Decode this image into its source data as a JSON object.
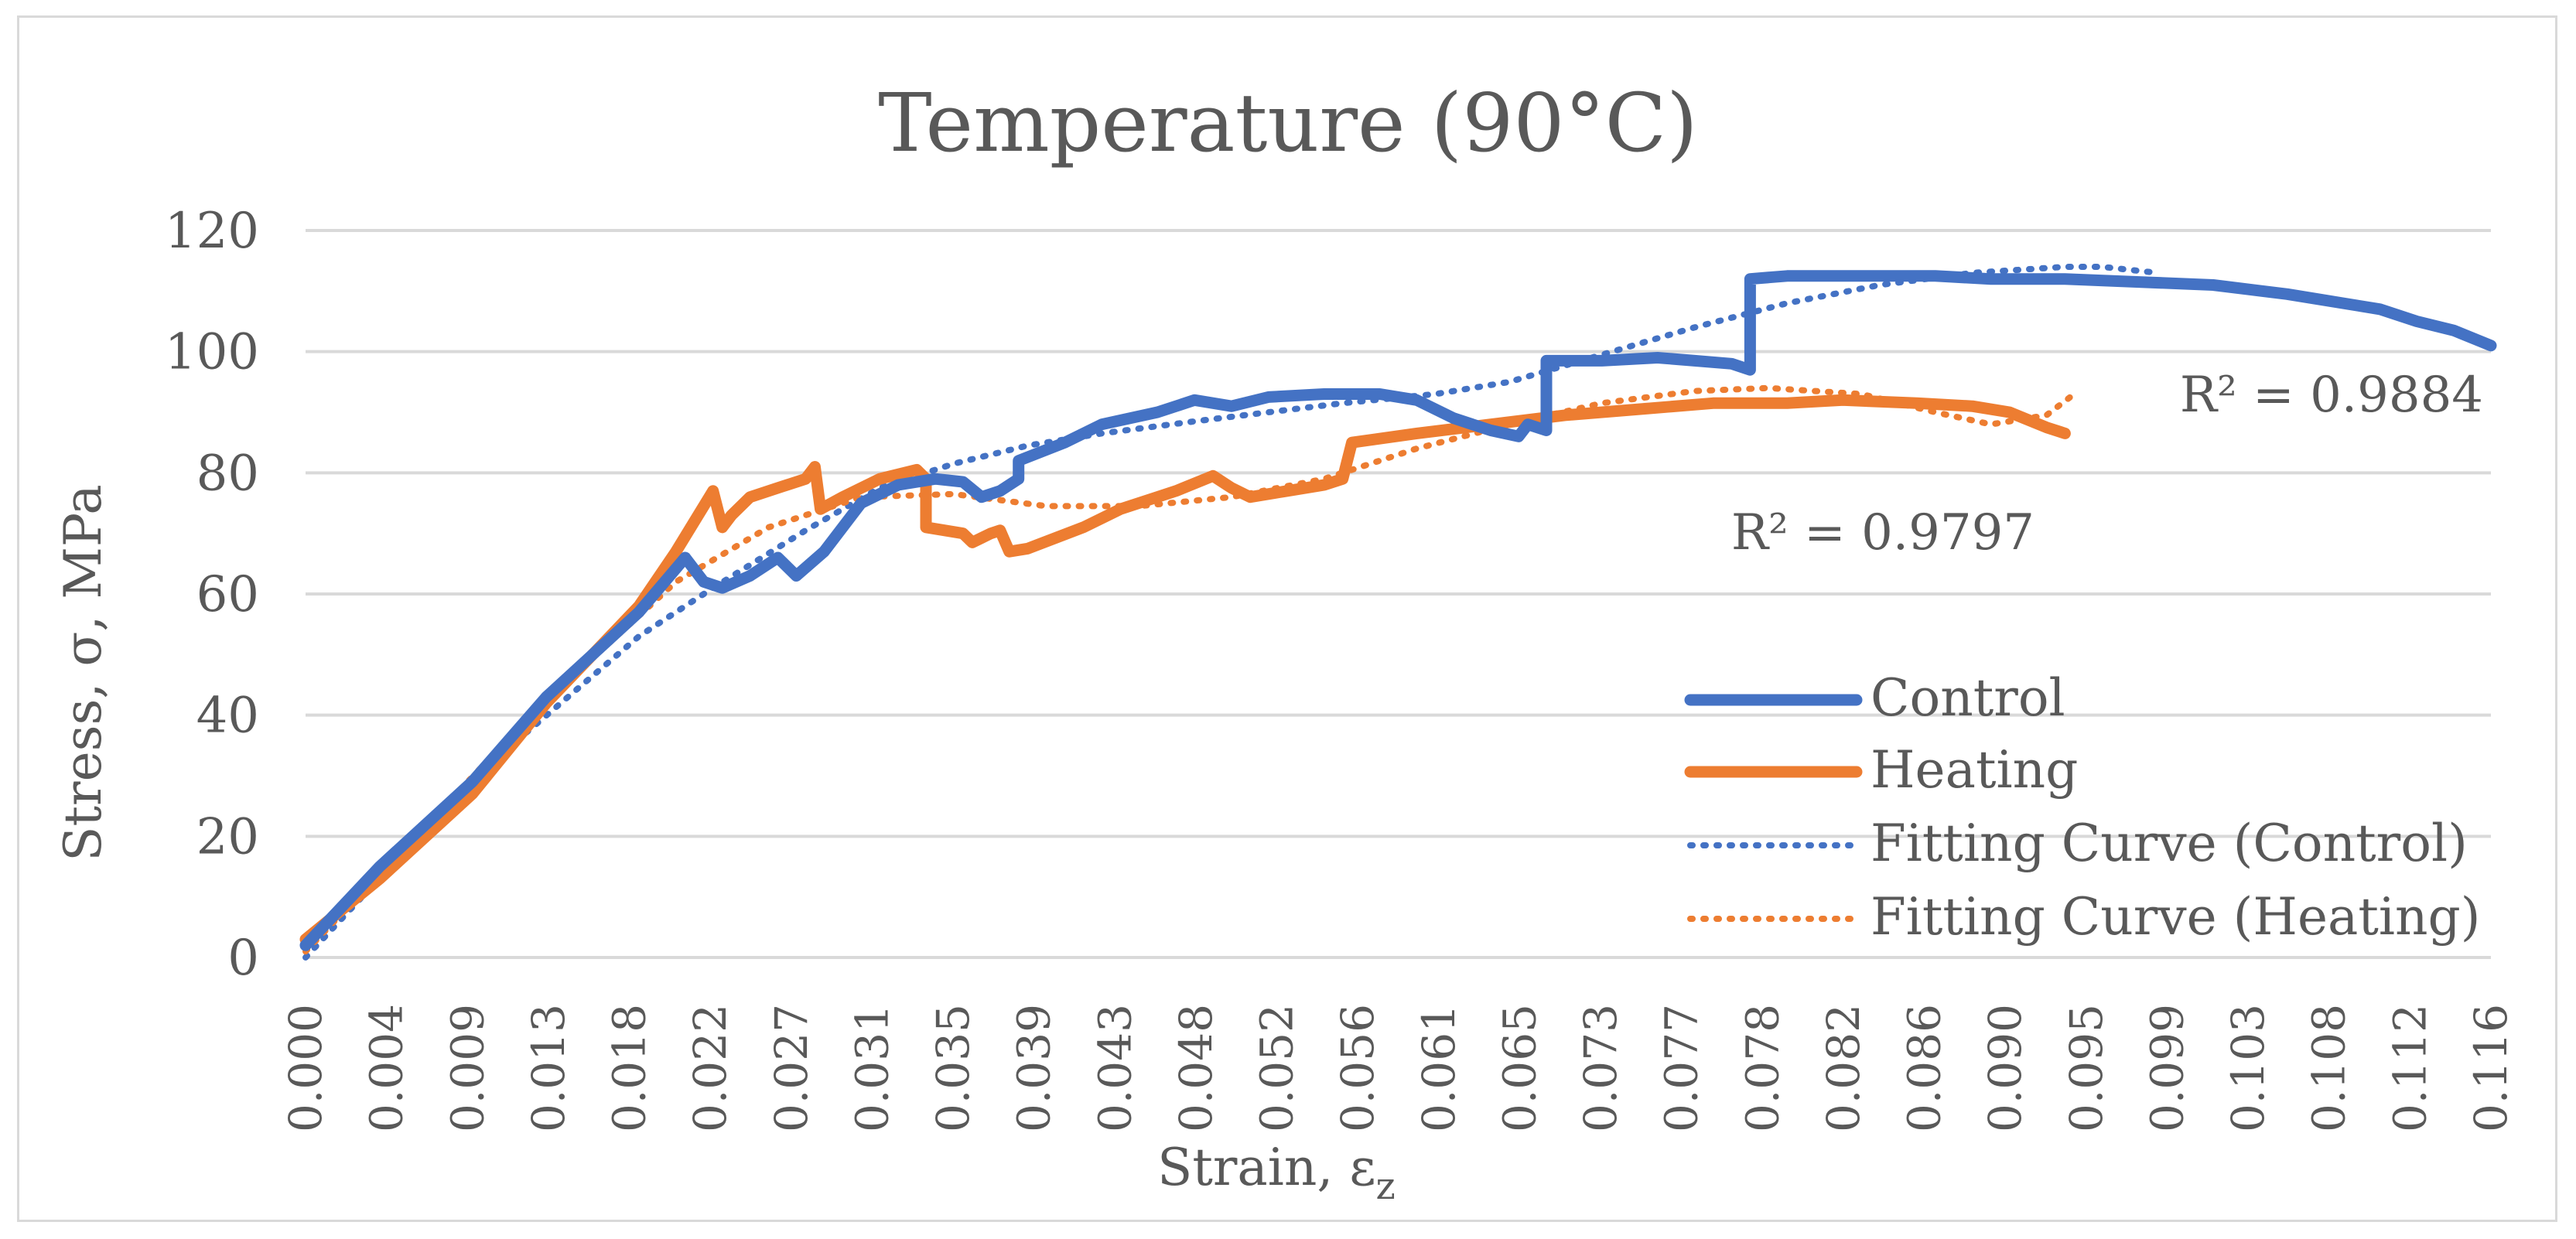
{
  "chart_data": {
    "type": "line",
    "title": "Temperature (90°C)",
    "xlabel_main": "Strain, ε",
    "xlabel_sub": "z",
    "ylabel": "Stress, σ, MPa",
    "xlim": [
      0,
      0.118
    ],
    "ylim": [
      0,
      120
    ],
    "y_ticks": [
      0,
      20,
      40,
      60,
      80,
      100,
      120
    ],
    "x_tick_labels": [
      "0.000",
      "0.004",
      "0.009",
      "0.013",
      "0.018",
      "0.022",
      "0.027",
      "0.031",
      "0.035",
      "0.039",
      "0.043",
      "0.048",
      "0.052",
      "0.056",
      "0.061",
      "0.065",
      "0.073",
      "0.077",
      "0.078",
      "0.082",
      "0.086",
      "0.090",
      "0.095",
      "0.099",
      "0.103",
      "0.108",
      "0.112",
      "0.116"
    ],
    "grid": true,
    "legend_position": "bottom-right",
    "annotations": [
      {
        "text": "R² = 0.9884",
        "series": "Fitting Curve (Control)"
      },
      {
        "text": "R² = 0.9797",
        "series": "Fitting Curve (Heating)"
      }
    ],
    "series": [
      {
        "name": "Control",
        "color": "#4472c4",
        "style": "solid",
        "points": [
          [
            0,
            2
          ],
          [
            0.004,
            15
          ],
          [
            0.009,
            29
          ],
          [
            0.013,
            43
          ],
          [
            0.018,
            57
          ],
          [
            0.0205,
            66
          ],
          [
            0.0215,
            62
          ],
          [
            0.0225,
            61
          ],
          [
            0.024,
            63
          ],
          [
            0.0255,
            66
          ],
          [
            0.0265,
            63
          ],
          [
            0.028,
            67
          ],
          [
            0.03,
            75
          ],
          [
            0.032,
            78
          ],
          [
            0.034,
            79
          ],
          [
            0.0355,
            78.5
          ],
          [
            0.0365,
            76
          ],
          [
            0.0375,
            77
          ],
          [
            0.0385,
            79
          ],
          [
            0.0385,
            82
          ],
          [
            0.041,
            85
          ],
          [
            0.043,
            88
          ],
          [
            0.046,
            90
          ],
          [
            0.048,
            92
          ],
          [
            0.05,
            91
          ],
          [
            0.052,
            92.5
          ],
          [
            0.055,
            93
          ],
          [
            0.058,
            93
          ],
          [
            0.06,
            92
          ],
          [
            0.062,
            89
          ],
          [
            0.064,
            87
          ],
          [
            0.0655,
            86
          ],
          [
            0.066,
            88
          ],
          [
            0.067,
            87
          ],
          [
            0.067,
            98.5
          ],
          [
            0.07,
            98.5
          ],
          [
            0.073,
            99
          ],
          [
            0.075,
            98.5
          ],
          [
            0.077,
            98
          ],
          [
            0.078,
            97
          ],
          [
            0.078,
            112
          ],
          [
            0.08,
            112.5
          ],
          [
            0.084,
            112.5
          ],
          [
            0.088,
            112.5
          ],
          [
            0.091,
            112
          ],
          [
            0.095,
            112
          ],
          [
            0.099,
            111.5
          ],
          [
            0.103,
            111
          ],
          [
            0.107,
            109.5
          ],
          [
            0.11,
            108
          ],
          [
            0.112,
            107
          ],
          [
            0.114,
            105
          ],
          [
            0.116,
            103.5
          ],
          [
            0.118,
            101
          ]
        ]
      },
      {
        "name": "Heating",
        "color": "#ed7d31",
        "style": "solid",
        "points": [
          [
            0,
            3
          ],
          [
            0.004,
            13
          ],
          [
            0.009,
            27
          ],
          [
            0.013,
            42
          ],
          [
            0.018,
            58
          ],
          [
            0.02,
            67
          ],
          [
            0.022,
            77
          ],
          [
            0.0225,
            71
          ],
          [
            0.023,
            73
          ],
          [
            0.024,
            76
          ],
          [
            0.0255,
            77.5
          ],
          [
            0.027,
            79
          ],
          [
            0.0275,
            81
          ],
          [
            0.0278,
            74
          ],
          [
            0.029,
            76
          ],
          [
            0.031,
            79
          ],
          [
            0.033,
            80.5
          ],
          [
            0.0335,
            79
          ],
          [
            0.0335,
            71
          ],
          [
            0.0355,
            70
          ],
          [
            0.036,
            68.5
          ],
          [
            0.037,
            70
          ],
          [
            0.0375,
            70.5
          ],
          [
            0.038,
            67
          ],
          [
            0.039,
            67.5
          ],
          [
            0.042,
            71
          ],
          [
            0.044,
            74
          ],
          [
            0.047,
            77
          ],
          [
            0.049,
            79.5
          ],
          [
            0.05,
            77.5
          ],
          [
            0.051,
            76
          ],
          [
            0.053,
            77
          ],
          [
            0.055,
            78
          ],
          [
            0.056,
            79
          ],
          [
            0.0565,
            85
          ],
          [
            0.06,
            86.5
          ],
          [
            0.064,
            88
          ],
          [
            0.068,
            89.5
          ],
          [
            0.072,
            90.5
          ],
          [
            0.076,
            91.5
          ],
          [
            0.08,
            91.5
          ],
          [
            0.083,
            92
          ],
          [
            0.087,
            91.5
          ],
          [
            0.09,
            91
          ],
          [
            0.092,
            90
          ],
          [
            0.094,
            87.5
          ],
          [
            0.095,
            86.5
          ]
        ]
      },
      {
        "name": "Fitting Curve (Control)",
        "color": "#4472c4",
        "style": "dotted",
        "points": [
          [
            0,
            0
          ],
          [
            0.009,
            29.5
          ],
          [
            0.018,
            53
          ],
          [
            0.022,
            61
          ],
          [
            0.027,
            70.5
          ],
          [
            0.031,
            77.5
          ],
          [
            0.035,
            81.5
          ],
          [
            0.039,
            84.5
          ],
          [
            0.043,
            86.5
          ],
          [
            0.048,
            88.5
          ],
          [
            0.052,
            90
          ],
          [
            0.056,
            91.5
          ],
          [
            0.061,
            93
          ],
          [
            0.065,
            95
          ],
          [
            0.07,
            99.5
          ],
          [
            0.075,
            104
          ],
          [
            0.08,
            108
          ],
          [
            0.085,
            111
          ],
          [
            0.09,
            113
          ],
          [
            0.095,
            114
          ],
          [
            0.097,
            114
          ],
          [
            0.1,
            113
          ]
        ]
      },
      {
        "name": "Fitting Curve (Heating)",
        "color": "#ed7d31",
        "style": "dotted",
        "points": [
          [
            0,
            1
          ],
          [
            0.005,
            17
          ],
          [
            0.01,
            33
          ],
          [
            0.015,
            48
          ],
          [
            0.02,
            62
          ],
          [
            0.025,
            71
          ],
          [
            0.03,
            76
          ],
          [
            0.035,
            76.5
          ],
          [
            0.04,
            74.5
          ],
          [
            0.045,
            74.5
          ],
          [
            0.05,
            76
          ],
          [
            0.055,
            79
          ],
          [
            0.06,
            84
          ],
          [
            0.065,
            88
          ],
          [
            0.07,
            91.5
          ],
          [
            0.075,
            93.5
          ],
          [
            0.079,
            94
          ],
          [
            0.084,
            93
          ],
          [
            0.088,
            90
          ],
          [
            0.091,
            88
          ],
          [
            0.094,
            89.5
          ],
          [
            0.0955,
            93
          ]
        ]
      }
    ]
  }
}
